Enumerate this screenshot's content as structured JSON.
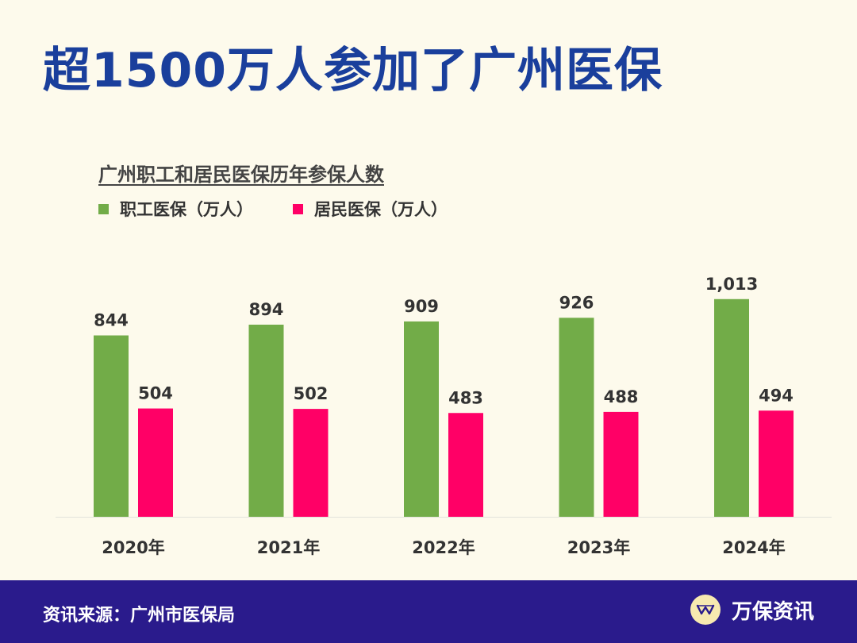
{
  "headline": "超1500万人参加了广州医保",
  "colors": {
    "background": "#fdfaec",
    "headline": "#1a3f9c",
    "employee": "#72ac48",
    "resident": "#ff0066",
    "footer": "#2a1b8c"
  },
  "chart_data": {
    "type": "bar",
    "title": "广州职工和居民医保历年参保人数",
    "categories": [
      "2020年",
      "2021年",
      "2022年",
      "2023年",
      "2024年"
    ],
    "series": [
      {
        "name": "职工医保（万人）",
        "values": [
          844,
          894,
          909,
          926,
          1013
        ],
        "labels": [
          "844",
          "894",
          "909",
          "926",
          "1,013"
        ],
        "color": "#72ac48"
      },
      {
        "name": "居民医保（万人）",
        "values": [
          504,
          502,
          483,
          488,
          494
        ],
        "labels": [
          "504",
          "502",
          "483",
          "488",
          "494"
        ],
        "color": "#ff0066"
      }
    ],
    "ylim": [
      0,
      1100
    ],
    "legend": "top-left",
    "grid": false
  },
  "footer": {
    "source": "资讯来源：广州市医保局",
    "brand": "万保资讯",
    "brand_logo_icon": "wanbao-logo-icon"
  }
}
